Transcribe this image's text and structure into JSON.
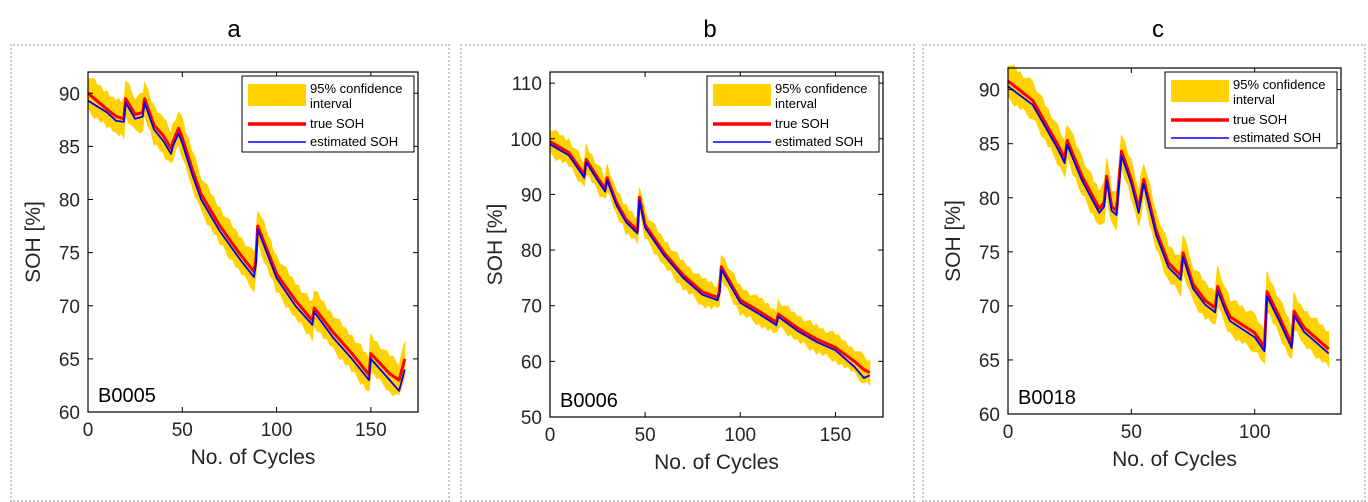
{
  "chart_data": [
    {
      "panel_label": "a",
      "type": "line",
      "xlabel": "No. of Cycles",
      "ylabel": "SOH [%]",
      "xlim": [
        0,
        175
      ],
      "ylim": [
        60,
        92
      ],
      "xticks": [
        0,
        50,
        100,
        150
      ],
      "yticks": [
        60,
        65,
        70,
        75,
        80,
        85,
        90
      ],
      "annotation": "B0005",
      "legend_position": "top-right",
      "legend": [
        "95% confidence interval",
        "true SOH",
        "estimated SOH"
      ],
      "band_halfwidth": 1.6,
      "series": [
        {
          "name": "true SOH",
          "color": "#ff0000",
          "x": [
            0,
            10,
            15,
            19,
            20,
            25,
            29,
            30,
            35,
            40,
            44,
            45,
            48,
            50,
            55,
            60,
            70,
            80,
            88,
            89,
            90,
            100,
            110,
            119,
            120,
            130,
            140,
            149,
            150,
            160,
            165,
            168
          ],
          "y": [
            90,
            88.5,
            87.8,
            87.6,
            89.5,
            88,
            88.2,
            89.5,
            87,
            86,
            84.8,
            85.4,
            86.7,
            85.8,
            83,
            80.5,
            77.5,
            75,
            73.2,
            74.2,
            77.5,
            73,
            70.5,
            68.6,
            69.8,
            67.5,
            65.5,
            63.5,
            65.5,
            63.6,
            63,
            65
          ]
        },
        {
          "name": "estimated SOH",
          "color": "#0000ff",
          "x": [
            0,
            10,
            15,
            19,
            20,
            25,
            29,
            30,
            35,
            40,
            44,
            45,
            48,
            50,
            55,
            60,
            70,
            80,
            88,
            89,
            90,
            100,
            110,
            119,
            120,
            130,
            140,
            149,
            150,
            160,
            165,
            168
          ],
          "y": [
            89.3,
            88.2,
            87.4,
            87.3,
            89.1,
            87.6,
            87.8,
            89.1,
            86.6,
            85.5,
            84.3,
            85,
            86.2,
            85.3,
            82.5,
            80,
            77,
            74.5,
            72.7,
            73.8,
            77.2,
            72.6,
            70,
            68.2,
            69.4,
            67,
            65,
            63,
            65,
            63,
            62,
            64
          ]
        }
      ]
    },
    {
      "panel_label": "b",
      "type": "line",
      "xlabel": "No. of Cycles",
      "ylabel": "SOH [%]",
      "xlim": [
        0,
        175
      ],
      "ylim": [
        50,
        112
      ],
      "xticks": [
        0,
        50,
        100,
        150
      ],
      "yticks": [
        50,
        60,
        70,
        80,
        90,
        100,
        110
      ],
      "annotation": "B0006",
      "legend_position": "top-right",
      "legend": [
        "95% confidence interval",
        "true SOH",
        "estimated SOH"
      ],
      "band_halfwidth": 2.2,
      "series": [
        {
          "name": "true SOH",
          "color": "#ff0000",
          "x": [
            0,
            10,
            18,
            19,
            25,
            29,
            30,
            35,
            40,
            46,
            47,
            50,
            60,
            70,
            80,
            88,
            89,
            90,
            100,
            110,
            119,
            120,
            130,
            140,
            150,
            160,
            165,
            168
          ],
          "y": [
            99.5,
            97.5,
            93.5,
            96.3,
            93,
            91,
            93,
            88.5,
            85.5,
            83.5,
            89.5,
            84.5,
            79.5,
            75.5,
            72.5,
            71.5,
            72.5,
            77,
            71,
            69,
            67,
            68.5,
            66,
            64,
            62.5,
            60,
            58.5,
            58
          ]
        },
        {
          "name": "estimated SOH",
          "color": "#0000ff",
          "x": [
            0,
            10,
            18,
            19,
            25,
            29,
            30,
            35,
            40,
            46,
            47,
            50,
            60,
            70,
            80,
            88,
            89,
            90,
            100,
            110,
            119,
            120,
            130,
            140,
            150,
            160,
            165,
            168
          ],
          "y": [
            99,
            97,
            93,
            95.8,
            92.5,
            90.5,
            92.5,
            88,
            85,
            83,
            89,
            84,
            79,
            75,
            72,
            71,
            72,
            76.5,
            70.5,
            68.5,
            66.5,
            68,
            65.5,
            63.5,
            62,
            59,
            57,
            57.5
          ]
        }
      ]
    },
    {
      "panel_label": "c",
      "type": "line",
      "xlabel": "No. of Cycles",
      "ylabel": "SOH [%]",
      "xlim": [
        0,
        135
      ],
      "ylim": [
        60,
        92
      ],
      "xticks": [
        0,
        50,
        100
      ],
      "yticks": [
        60,
        65,
        70,
        75,
        80,
        85,
        90
      ],
      "annotation": "B0018",
      "legend_position": "top-right",
      "legend": [
        "95% confidence interval",
        "true SOH",
        "estimated SOH"
      ],
      "band_halfwidth": 1.6,
      "series": [
        {
          "name": "true SOH",
          "color": "#ff0000",
          "x": [
            0,
            10,
            15,
            20,
            23,
            24,
            30,
            37,
            39,
            40,
            42,
            44,
            46,
            50,
            53,
            55,
            60,
            65,
            70,
            71,
            75,
            80,
            84,
            85,
            88,
            90,
            100,
            104,
            105,
            110,
            115,
            116,
            120,
            125,
            130
          ],
          "y": [
            90.8,
            89,
            87,
            85,
            83.6,
            85.3,
            82,
            79,
            79.6,
            82,
            79.2,
            78.8,
            84.3,
            81.7,
            79,
            81.7,
            77,
            74,
            72.8,
            74.9,
            72,
            70.5,
            69.8,
            71.8,
            70,
            69,
            67.5,
            66.2,
            71.3,
            69,
            66.5,
            69.5,
            68,
            67,
            66
          ]
        },
        {
          "name": "estimated SOH",
          "color": "#0000ff",
          "x": [
            0,
            10,
            15,
            20,
            23,
            24,
            30,
            37,
            39,
            40,
            42,
            44,
            46,
            50,
            53,
            55,
            60,
            65,
            70,
            71,
            75,
            80,
            84,
            85,
            88,
            90,
            100,
            104,
            105,
            110,
            115,
            116,
            120,
            125,
            130
          ],
          "y": [
            90.3,
            88.6,
            86.6,
            84.6,
            83.2,
            84.9,
            81.6,
            78.6,
            79.2,
            81.6,
            78.8,
            78.4,
            83.9,
            81.3,
            78.6,
            81.3,
            76.6,
            73.6,
            72.4,
            74.5,
            71.6,
            70.1,
            69.4,
            71.4,
            69.6,
            68.6,
            67.1,
            65.8,
            70.9,
            68.6,
            66.1,
            69.1,
            67.6,
            66.6,
            65.6
          ]
        }
      ]
    }
  ]
}
